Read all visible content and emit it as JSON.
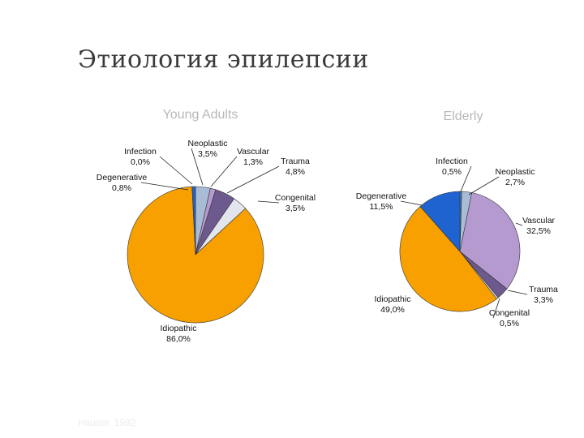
{
  "page": {
    "title": "Этиология эпилепсии",
    "source": "Hauser, 1992"
  },
  "chart_data": [
    {
      "type": "pie",
      "title": "Young Adults",
      "slices": [
        {
          "label": "Infection",
          "value": 0.0,
          "text": "0,0%",
          "color": "#4a7fc0"
        },
        {
          "label": "Neoplastic",
          "value": 3.5,
          "text": "3,5%",
          "color": "#a9bcd6"
        },
        {
          "label": "Vascular",
          "value": 1.3,
          "text": "1,3%",
          "color": "#b59ad0"
        },
        {
          "label": "Trauma",
          "value": 4.8,
          "text": "4,8%",
          "color": "#6c5a8e"
        },
        {
          "label": "Congenital",
          "value": 3.5,
          "text": "3,5%",
          "color": "#e2e6ec"
        },
        {
          "label": "Idiopathic",
          "value": 86.0,
          "text": "86,0%",
          "color": "#f7a000"
        },
        {
          "label": "Degenerative",
          "value": 0.8,
          "text": "0,8%",
          "color": "#1f63d0"
        }
      ]
    },
    {
      "type": "pie",
      "title": "Elderly",
      "slices": [
        {
          "label": "Infection",
          "value": 0.5,
          "text": "0,5%",
          "color": "#4a7fc0"
        },
        {
          "label": "Neoplastic",
          "value": 2.7,
          "text": "2,7%",
          "color": "#a9bcd6"
        },
        {
          "label": "Vascular",
          "value": 32.5,
          "text": "32,5%",
          "color": "#b59ad0"
        },
        {
          "label": "Trauma",
          "value": 3.3,
          "text": "3,3%",
          "color": "#6c5a8e"
        },
        {
          "label": "Congenital",
          "value": 0.5,
          "text": "0,5%",
          "color": "#e2e6ec"
        },
        {
          "label": "Idiopathic",
          "value": 49.0,
          "text": "49,0%",
          "color": "#f7a000"
        },
        {
          "label": "Degenerative",
          "value": 11.5,
          "text": "11,5%",
          "color": "#1f63d0"
        }
      ]
    }
  ]
}
